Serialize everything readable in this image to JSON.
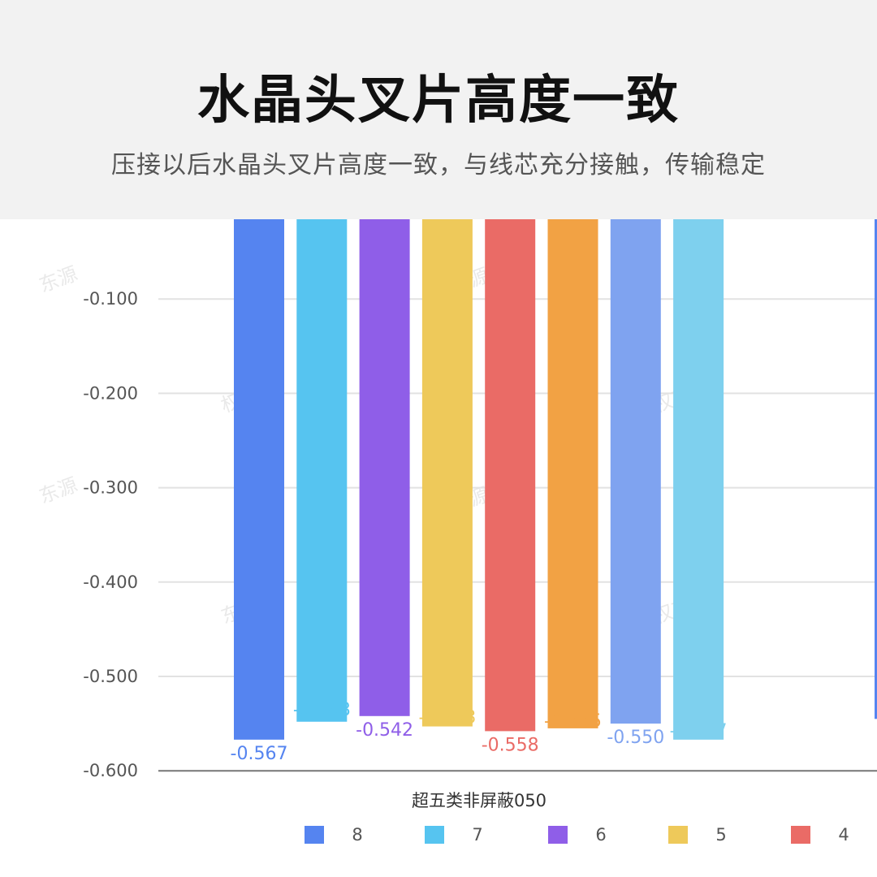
{
  "header": {
    "title": "水晶头叉片高度一致",
    "subtitle": "压接以后水晶头叉片高度一致，与线芯充分接触，传输稳定"
  },
  "chart_data": {
    "type": "bar",
    "categories": [
      "超五类非屏蔽050"
    ],
    "series": [
      {
        "name": "8",
        "values": [
          -0.567
        ],
        "color": "#5584f0"
      },
      {
        "name": "7",
        "values": [
          -0.548
        ],
        "color": "#56c4f0"
      },
      {
        "name": "6",
        "values": [
          -0.542
        ],
        "color": "#8f5ee8"
      },
      {
        "name": "5",
        "values": [
          -0.553
        ],
        "color": "#eec95a"
      },
      {
        "name": "4",
        "values": [
          -0.558
        ],
        "color": "#ea6b66"
      },
      {
        "name": "",
        "values": [
          -0.555
        ],
        "color": "#f2a244"
      },
      {
        "name": "",
        "values": [
          -0.55
        ],
        "color": "#7fa3f0"
      },
      {
        "name": "",
        "values": [
          -0.567
        ],
        "color": "#7ed0ee"
      }
    ],
    "y_ticks": [
      "-0.100",
      "-0.200",
      "-0.300",
      "-0.400",
      "-0.500",
      "-0.600"
    ],
    "y_tick_values": [
      -0.1,
      -0.2,
      -0.3,
      -0.4,
      -0.5,
      -0.6
    ],
    "ylim": [
      -0.6,
      0.0
    ],
    "grid": true,
    "legend": "bottom"
  },
  "watermarks": [
    "东源",
    "权东源",
    "权东",
    "权东源",
    "东源",
    "权东源",
    "东源",
    "权东源"
  ]
}
